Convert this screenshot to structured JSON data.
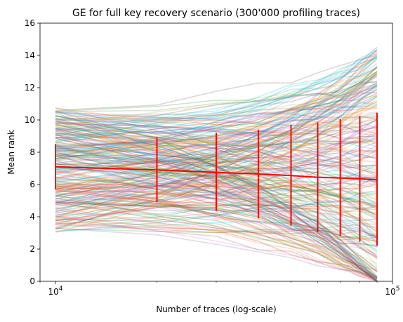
{
  "chart_data": {
    "type": "line",
    "title": "GE for full key recovery scenario (300'000 profiling traces)",
    "xlabel": "Number of traces (log-scale)",
    "ylabel": "Mean rank",
    "xscale": "log",
    "xlim": [
      9000,
      100000
    ],
    "ylim": [
      0,
      16
    ],
    "x_ticks": [
      {
        "value": 10000,
        "base": "10",
        "exp": "4"
      },
      {
        "value": 100000,
        "base": "10",
        "exp": "5"
      }
    ],
    "y_ticks": [
      0,
      2,
      4,
      6,
      8,
      10,
      12,
      14,
      16
    ],
    "grid": false,
    "legend": "none",
    "background_series": {
      "count": 256,
      "opacity": 0.25,
      "colors": [
        "#1f77b4",
        "#ff7f0e",
        "#2ca02c",
        "#d62728",
        "#9467bd",
        "#8c564b",
        "#e377c2",
        "#7f7f7f",
        "#bcbd22",
        "#17becf"
      ],
      "x": [
        10000,
        20000,
        30000,
        40000,
        50000,
        60000,
        70000,
        80000,
        90000
      ],
      "start_range": [
        2.7,
        11.2
      ],
      "end_range": [
        0,
        15.0
      ]
    },
    "mean_series": {
      "color": "#ff0000",
      "x": [
        10000,
        20000,
        30000,
        40000,
        50000,
        60000,
        70000,
        80000,
        90000
      ],
      "y": [
        7.1,
        6.9,
        6.75,
        6.65,
        6.55,
        6.45,
        6.4,
        6.35,
        6.3
      ],
      "yerr_low": [
        5.7,
        4.9,
        4.35,
        3.9,
        3.45,
        3.05,
        2.8,
        2.45,
        2.2
      ],
      "yerr_high": [
        8.5,
        8.9,
        9.2,
        9.4,
        9.7,
        9.85,
        10.05,
        10.25,
        10.45
      ]
    }
  }
}
